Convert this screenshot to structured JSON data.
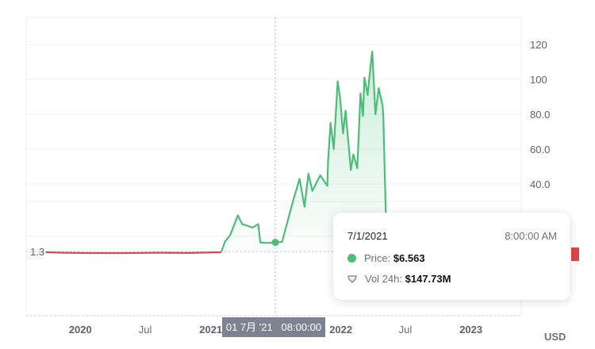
{
  "chart_data": {
    "type": "line",
    "title": "",
    "xlabel": "",
    "ylabel": "",
    "currency": "USD",
    "x_range": [
      "2019-08-02",
      "2023-05-22"
    ],
    "ylim": [
      -35.5,
      135.5
    ],
    "y_ticks": [
      "120",
      "100",
      "80.0",
      "60.0",
      "40.0"
    ],
    "y_tick_values": [
      120,
      100,
      80,
      60,
      40
    ],
    "x_ticks": [
      {
        "label": "2020",
        "date": "2020-01-01",
        "major": true
      },
      {
        "label": "Jul",
        "date": "2020-07-01",
        "major": false
      },
      {
        "label": "2021",
        "date": "2021-01-01",
        "major": true
      },
      {
        "label": "2022",
        "date": "2022-01-01",
        "major": true
      },
      {
        "label": "Jul",
        "date": "2022-07-01",
        "major": false
      },
      {
        "label": "2023",
        "date": "2023-01-01",
        "major": true
      }
    ],
    "baseline": {
      "label": "1.3",
      "value": 1.3
    },
    "grid": true,
    "colors": {
      "up": "#4cbd78",
      "down": "#d9474b",
      "fill": "#4cbd78",
      "grid": "#eef0f3",
      "crosshair": "#aab0bb"
    },
    "series": [
      {
        "points": [
          [
            "2019-09-26",
            0.9
          ],
          [
            "2019-11-15",
            0.6
          ],
          [
            "2020-02-12",
            0.4
          ],
          [
            "2020-05-01",
            0.4
          ],
          [
            "2020-08-08",
            0.6
          ],
          [
            "2020-11-01",
            0.5
          ],
          [
            "2021-01-30",
            0.9
          ],
          [
            "2021-02-10",
            7
          ],
          [
            "2021-02-25",
            11
          ],
          [
            "2021-03-18",
            22
          ],
          [
            "2021-03-30",
            17
          ],
          [
            "2021-04-15",
            16
          ],
          [
            "2021-04-28",
            15
          ],
          [
            "2021-05-14",
            17
          ],
          [
            "2021-05-20",
            6.5
          ],
          [
            "2021-06-10",
            6.2
          ],
          [
            "2021-07-01",
            6.563
          ],
          [
            "2021-07-20",
            6.8
          ],
          [
            "2021-08-18",
            29
          ],
          [
            "2021-09-07",
            43
          ],
          [
            "2021-09-21",
            27
          ],
          [
            "2021-10-02",
            46
          ],
          [
            "2021-10-13",
            36
          ],
          [
            "2021-11-04",
            45
          ],
          [
            "2021-11-24",
            39
          ],
          [
            "2021-11-26",
            53
          ],
          [
            "2021-12-03",
            75
          ],
          [
            "2021-12-12",
            60
          ],
          [
            "2021-12-23",
            99
          ],
          [
            "2021-12-30",
            89
          ],
          [
            "2022-01-07",
            69
          ],
          [
            "2022-01-14",
            82
          ],
          [
            "2022-01-29",
            48
          ],
          [
            "2022-02-05",
            57
          ],
          [
            "2022-02-16",
            49
          ],
          [
            "2022-02-25",
            92
          ],
          [
            "2022-03-04",
            79
          ],
          [
            "2022-03-08",
            101
          ],
          [
            "2022-03-17",
            91
          ],
          [
            "2022-03-26",
            109
          ],
          [
            "2022-03-30",
            116
          ],
          [
            "2022-04-08",
            80
          ],
          [
            "2022-04-17",
            95
          ],
          [
            "2022-04-28",
            85
          ],
          [
            "2022-04-30",
            79
          ],
          [
            "2022-05-07",
            23
          ]
        ]
      }
    ],
    "crosshair": {
      "date": "2021-07-01",
      "label": "01 7月 '21   08:00:00"
    },
    "tooltip": {
      "date": "7/1/2021",
      "time": "8:00:00 AM",
      "price_label": "Price:",
      "price_value": "$6.563",
      "volume_label": "Vol 24h:",
      "volume_value": "$147.73M",
      "price_icon": "green-dot-icon",
      "volume_icon": "volume-shield-icon"
    }
  }
}
